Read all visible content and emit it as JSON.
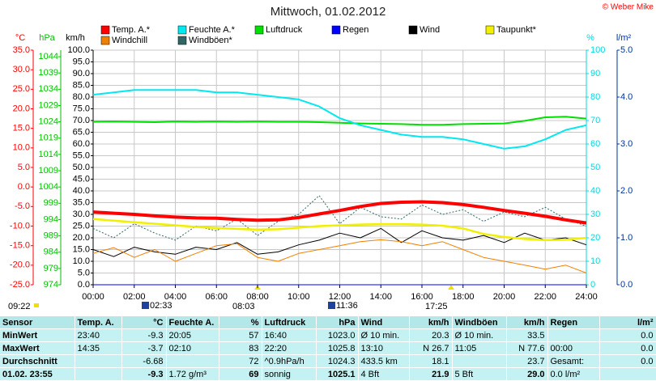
{
  "chart_data": {
    "type": "line",
    "title": "Mittwoch, 01.02.2012",
    "copyright": "© Weber Mike",
    "grid": true,
    "x": [
      0,
      1,
      2,
      3,
      4,
      5,
      6,
      7,
      8,
      9,
      10,
      11,
      12,
      13,
      14,
      15,
      16,
      17,
      18,
      19,
      20,
      21,
      22,
      23,
      24
    ],
    "xlim": [
      0,
      24
    ],
    "xticks": [
      {
        "value": 0,
        "label": "00:00"
      },
      {
        "value": 2,
        "label": "02:00"
      },
      {
        "value": 4,
        "label": "04:00"
      },
      {
        "value": 6,
        "label": "06:00"
      },
      {
        "value": 8,
        "label": "08:00"
      },
      {
        "value": 10,
        "label": "10:00"
      },
      {
        "value": 12,
        "label": "12:00"
      },
      {
        "value": 14,
        "label": "14:00"
      },
      {
        "value": 16,
        "label": "16:00"
      },
      {
        "value": 18,
        "label": "18:00"
      },
      {
        "value": 20,
        "label": "20:00"
      },
      {
        "value": 22,
        "label": "22:00"
      },
      {
        "value": 24,
        "label": "24:00"
      }
    ],
    "axes": [
      {
        "label": "°C",
        "color": "#ff0000",
        "lim": [
          -25,
          35
        ],
        "ticks": [
          {
            "value": 35,
            "label": "35.0"
          },
          {
            "value": 30,
            "label": "30.0"
          },
          {
            "value": 25,
            "label": "25.0"
          },
          {
            "value": 20,
            "label": "20.0"
          },
          {
            "value": 15,
            "label": "15.0"
          },
          {
            "value": 10,
            "label": "10.0"
          },
          {
            "value": 5,
            "label": "5.0"
          },
          {
            "value": 0,
            "label": "0.0"
          },
          {
            "value": -5,
            "label": "-5.0"
          },
          {
            "value": -10,
            "label": "-10.0"
          },
          {
            "value": -15,
            "label": "-15.0"
          },
          {
            "value": -20,
            "label": "-20.0"
          },
          {
            "value": -25,
            "label": "-25.0"
          }
        ]
      },
      {
        "label": "hPa",
        "color": "#00c000",
        "lim": [
          974,
          1046
        ],
        "ticks": [
          1044,
          1039,
          1034,
          1029,
          1024,
          1019,
          1014,
          1009,
          1004,
          999,
          994,
          989,
          984,
          979,
          974
        ]
      },
      {
        "label": "km/h",
        "color": "#000000",
        "lim": [
          0,
          100
        ],
        "ticks": [
          {
            "value": 100,
            "label": "100.0"
          },
          {
            "value": 95,
            "label": "95.0"
          },
          {
            "value": 90,
            "label": "90.0"
          },
          {
            "value": 85,
            "label": "85.0"
          },
          {
            "value": 80,
            "label": "80.0"
          },
          {
            "value": 75,
            "label": "75.0"
          },
          {
            "value": 70,
            "label": "70.0"
          },
          {
            "value": 65,
            "label": "65.0"
          },
          {
            "value": 60,
            "label": "60.0"
          },
          {
            "value": 55,
            "label": "55.0"
          },
          {
            "value": 50,
            "label": "50.0"
          },
          {
            "value": 45,
            "label": "45.0"
          },
          {
            "value": 40,
            "label": "40.0"
          },
          {
            "value": 35,
            "label": "35.0"
          },
          {
            "value": 30,
            "label": "30.0"
          },
          {
            "value": 25,
            "label": "25.0"
          },
          {
            "value": 20,
            "label": "20.0"
          },
          {
            "value": 15,
            "label": "15.0"
          },
          {
            "value": 10,
            "label": "10.0"
          },
          {
            "value": 5,
            "label": "5.0"
          },
          {
            "value": 0,
            "label": "0.0"
          }
        ]
      },
      {
        "label": "%",
        "color": "#00d8e0",
        "lim": [
          0,
          100
        ],
        "ticks": [
          100,
          90,
          80,
          70,
          60,
          50,
          40,
          30,
          20,
          10,
          0
        ]
      },
      {
        "label": "l/m²",
        "color": "#003399",
        "lim": [
          0,
          5
        ],
        "ticks": [
          {
            "value": 5,
            "label": "5.0"
          },
          {
            "value": 4,
            "label": "4.0"
          },
          {
            "value": 3,
            "label": "3.0"
          },
          {
            "value": 2,
            "label": "2.0"
          },
          {
            "value": 1,
            "label": "1.0"
          },
          {
            "value": 0,
            "label": "0.0"
          }
        ]
      }
    ],
    "series": [
      {
        "name": "Temp. A.*",
        "color": "#ff0000",
        "axis": "°C",
        "width": 4,
        "values": [
          -6.4,
          -6.7,
          -7.0,
          -7.4,
          -7.7,
          -7.9,
          -8.0,
          -8.3,
          -8.5,
          -8.4,
          -7.8,
          -6.9,
          -6.0,
          -5.0,
          -4.2,
          -3.9,
          -3.8,
          -4.0,
          -4.5,
          -5.2,
          -6.0,
          -6.7,
          -7.5,
          -8.4,
          -9.2
        ]
      },
      {
        "name": "Feuchte A.*",
        "color": "#00e8f0",
        "axis": "%",
        "width": 2,
        "values": [
          81,
          82,
          83,
          83,
          83,
          83,
          82,
          82,
          81,
          80,
          79,
          76,
          71,
          68,
          66,
          64,
          63,
          63,
          62,
          60,
          58,
          59,
          62,
          66,
          68
        ]
      },
      {
        "name": "Luftdruck",
        "color": "#00e000",
        "axis": "hPa",
        "width": 2,
        "values": [
          1024.0,
          1024.1,
          1024.0,
          1023.9,
          1024.1,
          1024.0,
          1024.1,
          1024.0,
          1024.1,
          1024.0,
          1024.0,
          1023.9,
          1023.7,
          1023.5,
          1023.4,
          1023.3,
          1023.1,
          1023.1,
          1023.3,
          1023.4,
          1023.5,
          1024.3,
          1025.4,
          1025.6,
          1025.0
        ]
      },
      {
        "name": "Regen",
        "color": "#0000ff",
        "axis": "l/m²",
        "width": 1,
        "values": [
          0,
          0,
          0,
          0,
          0,
          0,
          0,
          0,
          0,
          0,
          0,
          0,
          0,
          0,
          0,
          0,
          0,
          0,
          0,
          0,
          0,
          0,
          0,
          0,
          0
        ]
      },
      {
        "name": "Wind",
        "color": "#000000",
        "axis": "km/h",
        "width": 1,
        "values": [
          15,
          12,
          16,
          14,
          13,
          16,
          15,
          18,
          13,
          14,
          17,
          19,
          22,
          20,
          24,
          18,
          23,
          20,
          19,
          21,
          18,
          22,
          19,
          20,
          17
        ]
      },
      {
        "name": "Taupunkt*",
        "color": "#f0f000",
        "axis": "°C",
        "width": 2.5,
        "values": [
          -8.2,
          -8.6,
          -9.0,
          -9.4,
          -9.8,
          -10.2,
          -10.5,
          -10.7,
          -10.9,
          -10.8,
          -10.4,
          -10.0,
          -9.8,
          -9.6,
          -9.5,
          -9.5,
          -9.6,
          -9.9,
          -10.6,
          -12.0,
          -12.8,
          -13.3,
          -13.6,
          -13.5,
          -13.0
        ]
      },
      {
        "name": "Windchill",
        "color": "#f08000",
        "axis": "°C",
        "width": 1,
        "values": [
          -17,
          -15.5,
          -18,
          -16,
          -19,
          -17,
          -15,
          -14.5,
          -18,
          -19,
          -17,
          -16,
          -15,
          -14,
          -13.5,
          -14,
          -15,
          -14,
          -16,
          -18,
          -19,
          -20,
          -21,
          -20,
          -22
        ]
      },
      {
        "name": "Windböen*",
        "color": "#336666",
        "axis": "km/h",
        "width": 1,
        "linestyle": "dotted",
        "values": [
          24,
          20,
          26,
          22,
          19,
          25,
          23,
          28,
          21,
          27,
          30,
          38,
          26,
          33,
          29,
          28,
          34,
          30,
          32,
          27,
          31,
          29,
          33,
          28,
          25
        ]
      }
    ],
    "events": [
      "09:22",
      "02:33",
      "08:03",
      "11:36",
      "17:25"
    ]
  },
  "table": {
    "header": [
      "Sensor",
      "Temp. A.",
      "°C",
      "Feuchte A.",
      "%",
      "Luftdruck",
      "hPa",
      "Wind",
      "km/h",
      "Windböen",
      "km/h",
      "Regen",
      "l/m²"
    ],
    "rows": [
      [
        "MinWert",
        "23:40",
        "-9.3",
        "20:05",
        "57",
        "16:40",
        "1023.0",
        "Ø 10 min.",
        "20.3",
        "Ø 10 min.",
        "33.5",
        null,
        "0.0"
      ],
      [
        "MaxWert",
        "14:35",
        "-3.7",
        "02:10",
        "83",
        "22:20",
        "1025.8",
        "13:10",
        "N 26.7",
        "11:05",
        "N 77.6",
        "00:00",
        "0.0"
      ],
      [
        "Durchschnitt",
        null,
        "-6.68",
        null,
        "72",
        "^0.9hPa/h",
        "1024.3",
        "433.5 km",
        "18.1",
        null,
        "23.7",
        "Gesamt:",
        "0.0"
      ],
      [
        "01.02. 23:55",
        null,
        "-9.3",
        "1.72 g/m³",
        "69",
        "sonnig",
        "1025.1",
        "4 Bft",
        "21.9",
        "5 Bft",
        "29.0",
        "0.0 l/m²",
        null
      ]
    ]
  }
}
